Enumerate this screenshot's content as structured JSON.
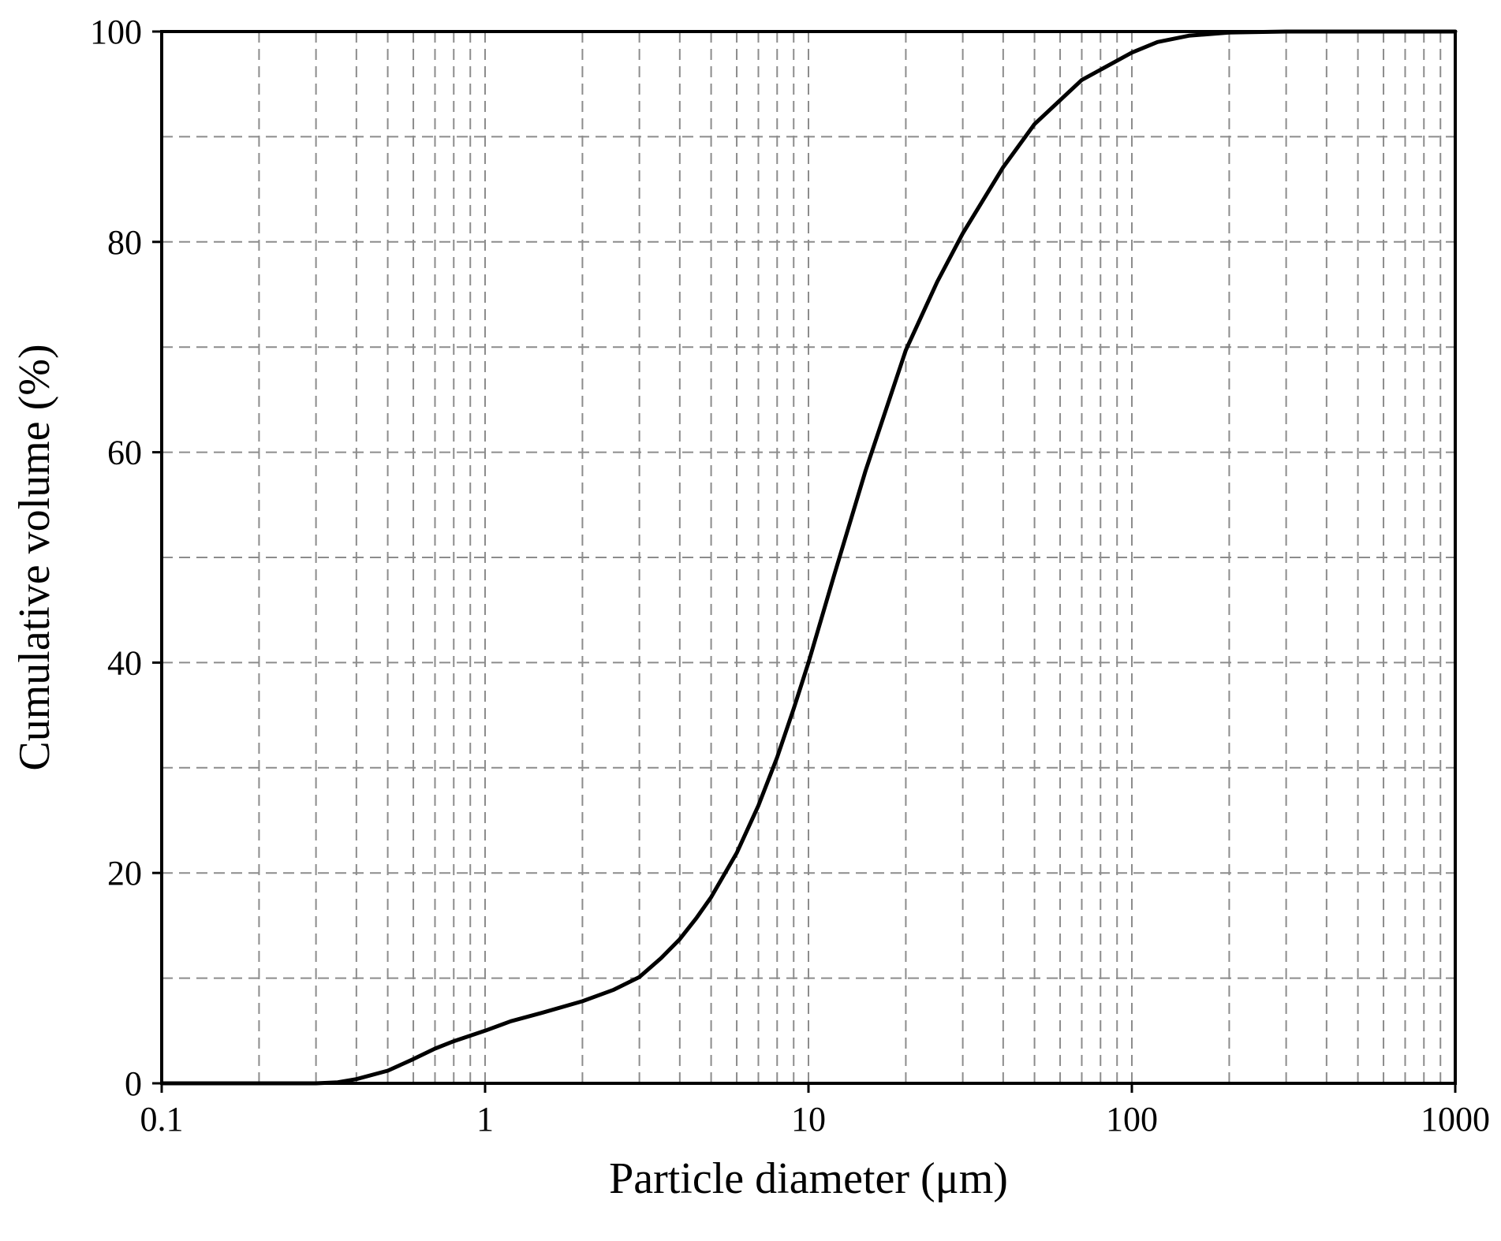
{
  "chart_data": {
    "type": "line",
    "title": "",
    "xlabel": "Particle diameter (μm)",
    "ylabel": "Cumulative volume (%)",
    "xscale": "log",
    "xlim": [
      0.1,
      1000
    ],
    "ylim": [
      0,
      100
    ],
    "grid": true,
    "grid_style": "dashed",
    "colors": {
      "line": "#000000",
      "grid": "#8c8c8c",
      "frame": "#000000"
    },
    "x_ticks": [
      {
        "value": 0.1,
        "label": "0.1"
      },
      {
        "value": 1,
        "label": "1"
      },
      {
        "value": 10,
        "label": "10"
      },
      {
        "value": 100,
        "label": "100"
      },
      {
        "value": 1000,
        "label": "1000"
      }
    ],
    "y_ticks": [
      {
        "value": 0,
        "label": "0"
      },
      {
        "value": 20,
        "label": "20"
      },
      {
        "value": 40,
        "label": "40"
      },
      {
        "value": 60,
        "label": "60"
      },
      {
        "value": 80,
        "label": "80"
      },
      {
        "value": 100,
        "label": "100"
      }
    ],
    "y_minor_grid": [
      10,
      30,
      50,
      70,
      90
    ],
    "series": [
      {
        "x": [
          0.1,
          0.2,
          0.3,
          0.35,
          0.4,
          0.5,
          0.6,
          0.7,
          0.8,
          1.0,
          1.2,
          1.5,
          2.0,
          2.5,
          3.0,
          3.5,
          4.0,
          4.5,
          5.0,
          6.0,
          7.0,
          8.0,
          9.0,
          10,
          12,
          15,
          20,
          25,
          30,
          40,
          50,
          70,
          100,
          120,
          150,
          200,
          300,
          1000
        ],
        "y": [
          0,
          0,
          0,
          0.1,
          0.4,
          1.2,
          2.3,
          3.3,
          4.0,
          5.0,
          5.9,
          6.7,
          7.8,
          8.9,
          10.1,
          11.9,
          13.7,
          15.7,
          17.7,
          21.9,
          26.4,
          31.0,
          35.6,
          40.0,
          48.3,
          58.2,
          69.7,
          76.2,
          80.8,
          87.1,
          91.2,
          95.4,
          98.0,
          99.0,
          99.6,
          99.9,
          100,
          100
        ]
      }
    ]
  }
}
